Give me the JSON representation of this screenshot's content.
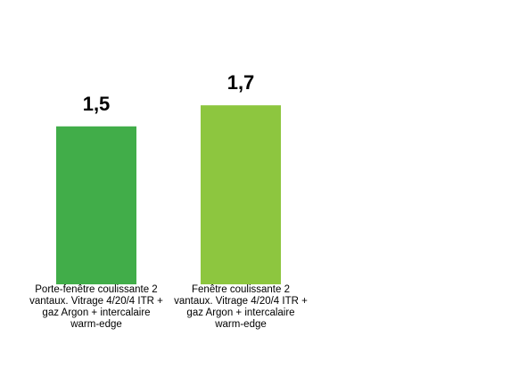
{
  "chart_data": {
    "type": "bar",
    "categories": [
      "Porte-fenêtre coulissante 2 vantaux. Vitrage 4/20/4 ITR + gaz Argon + intercalaire warm-edge",
      "Fenêtre coulissante 2 vantaux. Vitrage 4/20/4 ITR + gaz Argon + intercalaire warm-edge"
    ],
    "values": [
      1.5,
      1.7
    ],
    "value_labels": [
      "1,5",
      "1,7"
    ],
    "colors": [
      "#41ad49",
      "#8dc63f"
    ],
    "title": "",
    "xlabel": "",
    "ylabel": "",
    "ylim": [
      0,
      2.7
    ],
    "grid": false,
    "legend": "none"
  }
}
